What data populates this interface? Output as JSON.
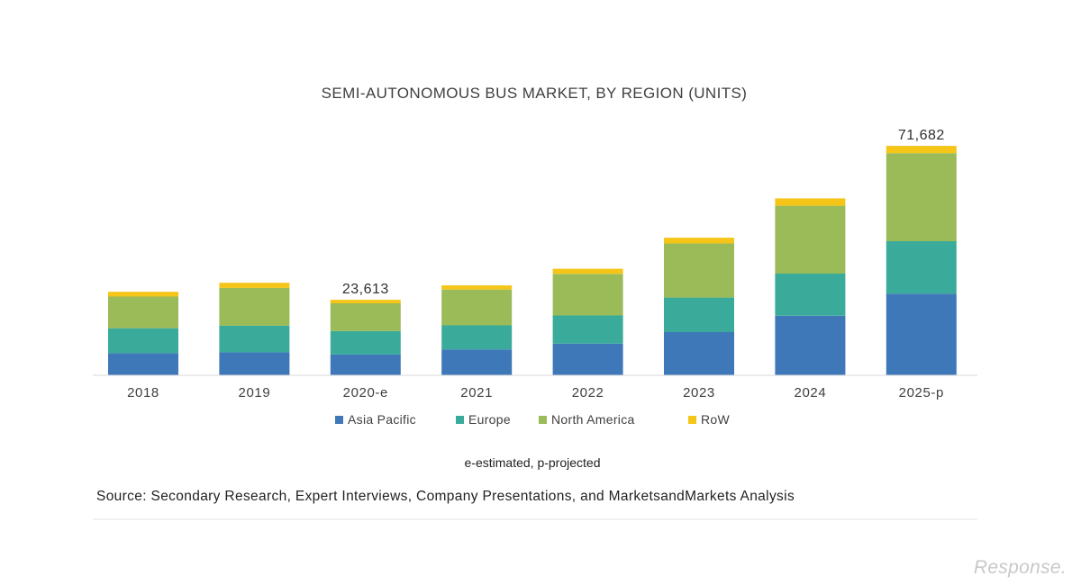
{
  "chart_data": {
    "type": "bar",
    "stacked": true,
    "title": "SEMI-AUTONOMOUS BUS MARKET, BY REGION (UNITS)",
    "categories": [
      "2018",
      "2019",
      "2020-e",
      "2021",
      "2022",
      "2023",
      "2024",
      "2025-p"
    ],
    "series": [
      {
        "name": "Asia Pacific",
        "color": "#3e78b9",
        "values": [
          6900,
          7200,
          6500,
          8100,
          9900,
          13500,
          18600,
          25500
        ]
      },
      {
        "name": "Europe",
        "color": "#3aab9a",
        "values": [
          7800,
          8300,
          7300,
          7500,
          8800,
          10800,
          13200,
          16400
        ]
      },
      {
        "name": "North America",
        "color": "#9bbb59",
        "values": [
          9900,
          11800,
          8700,
          11200,
          13000,
          16900,
          21200,
          27500
        ]
      },
      {
        "name": "RoW",
        "color": "#f5c518",
        "values": [
          1500,
          1600,
          1100,
          1300,
          1600,
          1800,
          2300,
          2282
        ]
      }
    ],
    "data_labels": [
      {
        "category": "2020-e",
        "text": "23,613"
      },
      {
        "category": "2025-p",
        "text": "71,682"
      }
    ],
    "ylim": [
      0,
      72000
    ],
    "y_axis_visible": false,
    "grid": false,
    "legend_position": "bottom"
  },
  "note": "e-estimated, p-projected",
  "source": "Source: Secondary Research, Expert Interviews, Company Presentations, and MarketsandMarkets Analysis",
  "watermark": "Response."
}
